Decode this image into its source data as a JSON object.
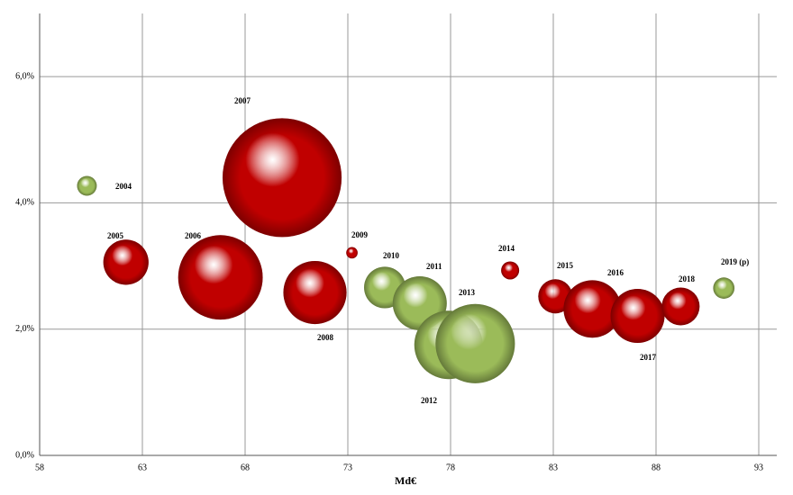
{
  "chart_data": {
    "type": "bubble",
    "x_label": "Md€",
    "xlim": [
      58,
      93
    ],
    "xticks": [
      58,
      63,
      68,
      73,
      78,
      83,
      88,
      93
    ],
    "ylim": [
      0,
      7
    ],
    "yticks": [
      {
        "value": 0,
        "label": "0,0%"
      },
      {
        "value": 2,
        "label": "2,0%"
      },
      {
        "value": 4,
        "label": "4,0%"
      },
      {
        "value": 6,
        "label": "6,0%"
      }
    ],
    "grid": true,
    "points": [
      {
        "label": "2004",
        "x": 60.3,
        "y": 4.27,
        "size": 1.2,
        "color": "#9bbb59"
      },
      {
        "label": "2005",
        "x": 62.2,
        "y": 3.06,
        "size": 6.3,
        "color": "#c00000"
      },
      {
        "label": "2006",
        "x": 66.8,
        "y": 2.82,
        "size": 22,
        "color": "#c00000"
      },
      {
        "label": "2007",
        "x": 69.8,
        "y": 4.4,
        "size": 43.6,
        "color": "#c00000"
      },
      {
        "label": "2008",
        "x": 71.4,
        "y": 2.58,
        "size": 12.3,
        "color": "#c00000"
      },
      {
        "label": "2009",
        "x": 73.2,
        "y": 3.21,
        "size": 0.4,
        "color": "#c00000"
      },
      {
        "label": "2010",
        "x": 74.8,
        "y": 2.66,
        "size": 5.3,
        "color": "#9bbb59"
      },
      {
        "label": "2011",
        "x": 76.5,
        "y": 2.41,
        "size": 9,
        "color": "#9bbb59"
      },
      {
        "label": "2012",
        "x": 77.9,
        "y": 1.75,
        "size": 14.4,
        "color": "#9bbb59"
      },
      {
        "label": "2013",
        "x": 79.2,
        "y": 1.77,
        "size": 19.4,
        "color": "#9bbb59"
      },
      {
        "label": "2014",
        "x": 80.9,
        "y": 2.93,
        "size": 1,
        "color": "#c00000"
      },
      {
        "label": "2015",
        "x": 83.1,
        "y": 2.52,
        "size": 3.6,
        "color": "#c00000"
      },
      {
        "label": "2016",
        "x": 84.9,
        "y": 2.32,
        "size": 10.2,
        "color": "#c00000"
      },
      {
        "label": "2017",
        "x": 87.1,
        "y": 2.21,
        "size": 9,
        "color": "#c00000"
      },
      {
        "label": "2018",
        "x": 89.2,
        "y": 2.36,
        "size": 4.4,
        "color": "#c00000"
      },
      {
        "label": "2019 (p)",
        "x": 91.3,
        "y": 2.65,
        "size": 1.4,
        "color": "#9bbb59"
      }
    ]
  }
}
